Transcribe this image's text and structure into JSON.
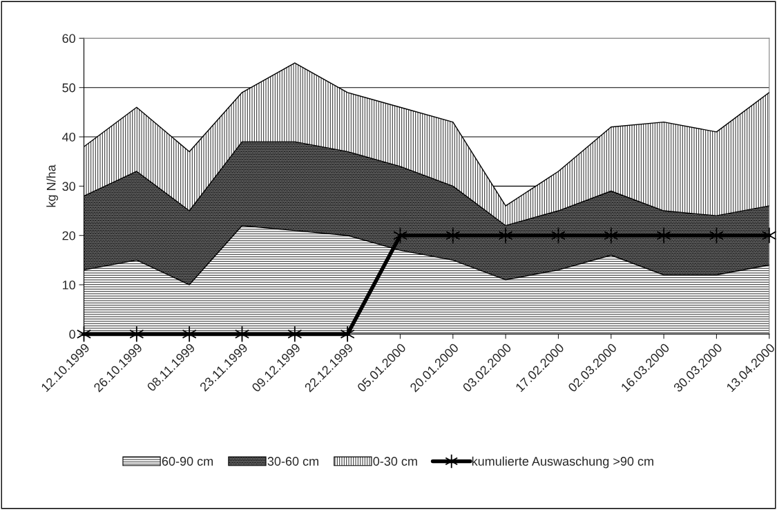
{
  "chart_data": {
    "type": "area",
    "stacked": true,
    "ylabel": "kg N/ha",
    "categories": [
      "12.10.1999",
      "26.10.1999",
      "08.11.1999",
      "23.11.1999",
      "09.12.1999",
      "22.12.1999",
      "05.01.2000",
      "20.01.2000",
      "03.02.2000",
      "17.02.2000",
      "02.03.2000",
      "16.03.2000",
      "30.03.2000",
      "13.04.2000"
    ],
    "series": [
      {
        "name": "60-90 cm",
        "color": "#ffffff",
        "values": [
          13,
          15,
          10,
          22,
          21,
          20,
          17,
          15,
          11,
          13,
          16,
          12,
          12,
          14
        ]
      },
      {
        "name": "30-60 cm",
        "color": "#808080",
        "values": [
          15,
          18,
          15,
          17,
          18,
          17,
          17,
          15,
          11,
          12,
          13,
          13,
          12,
          12
        ]
      },
      {
        "name": "0-30 cm",
        "color": "#ffffff",
        "values": [
          10,
          13,
          12,
          10,
          16,
          12,
          12,
          13,
          4,
          8,
          13,
          18,
          17,
          23
        ]
      },
      {
        "name": "kumulierte Auswaschung >90 cm",
        "type": "line",
        "color": "#000000",
        "marker": "cross",
        "line_style": "solid",
        "values": [
          0,
          0,
          0,
          0,
          0,
          0,
          20,
          20,
          20,
          20,
          20,
          20,
          20,
          20
        ]
      }
    ],
    "ylim": [
      0,
      60
    ],
    "yticks": [
      0,
      10,
      20,
      30,
      40,
      50,
      60
    ],
    "grid": "y",
    "legend": "bottom"
  }
}
